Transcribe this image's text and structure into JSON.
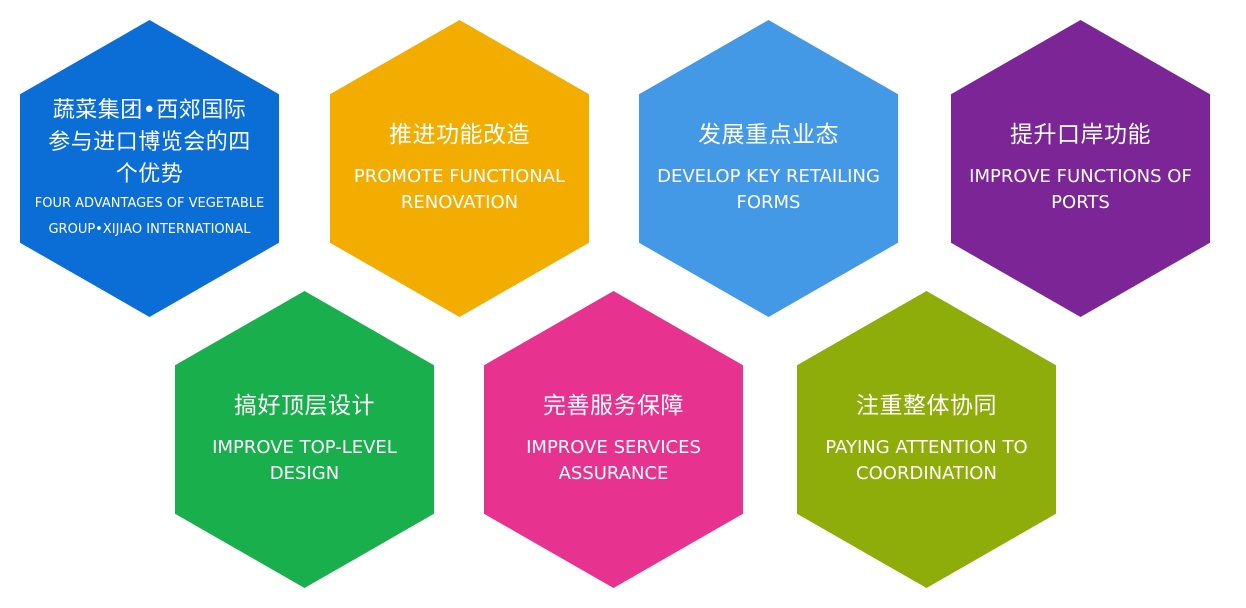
{
  "colors": {
    "main": "#0b6ed7",
    "renovation": "#f2ad00",
    "retailing": "#4499e6",
    "ports": "#7b2597",
    "design": "#1aaf4d",
    "services": "#e8328f",
    "coordination": "#8fad0a"
  },
  "hexagons": [
    {
      "id": "main",
      "zh": "蔬菜集团•西郊国际参与进口博览会的四个优势",
      "en": "FOUR ADVANTAGES OF  VEGETABLE GROUP•XIJIAO INTERNATIONAL"
    },
    {
      "id": "renovation",
      "zh": "推进功能改造",
      "en": "PROMOTE FUNCTIONAL RENOVATION"
    },
    {
      "id": "retailing",
      "zh": "发展重点业态",
      "en": "DEVELOP KEY RETAILING FORMS"
    },
    {
      "id": "ports",
      "zh": "提升口岸功能",
      "en": "IMPROVE FUNCTIONS OF PORTS"
    },
    {
      "id": "design",
      "zh": "搞好顶层设计",
      "en": "IMPROVE TOP-LEVEL DESIGN"
    },
    {
      "id": "services",
      "zh": "完善服务保障",
      "en": "IMPROVE SERVICES ASSURANCE"
    },
    {
      "id": "coordination",
      "zh": "注重整体协同",
      "en": "PAYING ATTENTION TO COORDINATION"
    }
  ]
}
